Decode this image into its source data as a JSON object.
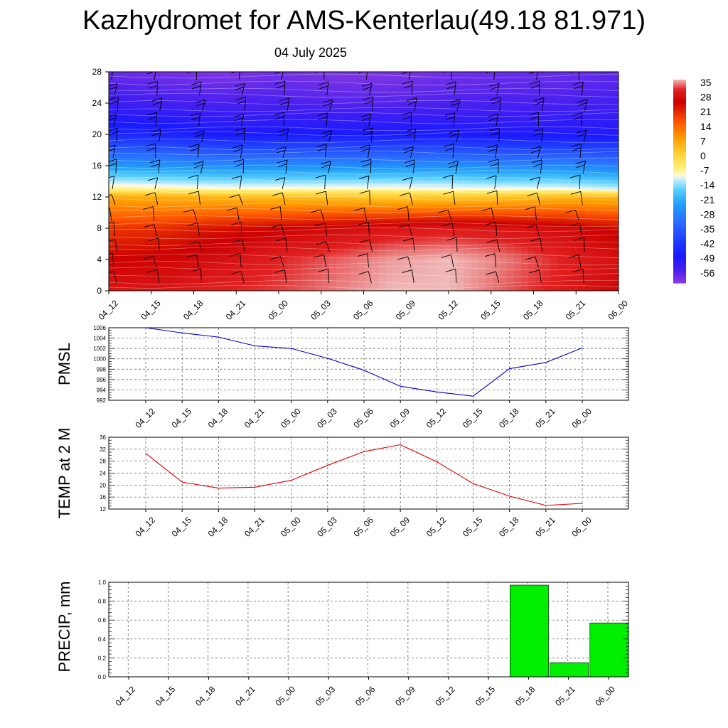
{
  "title": "Kazhydromet for AMS-Kenterlau(49.18 81.971)",
  "subtitle": "04 July 2025",
  "time_labels": [
    "04_12",
    "04_15",
    "04_18",
    "04_21",
    "05_00",
    "05_03",
    "05_06",
    "05_09",
    "05_12",
    "05_15",
    "05_18",
    "05_21",
    "06_00"
  ],
  "chart_data": [
    {
      "type": "heatmap",
      "title": "",
      "ylim": [
        0,
        28
      ],
      "y_ticks": [
        0,
        4,
        8,
        12,
        16,
        20,
        24,
        28
      ],
      "x_ticks": [
        "04_12",
        "04_15",
        "04_18",
        "04_21",
        "05_00",
        "05_03",
        "05_06",
        "05_09",
        "05_12",
        "05_15",
        "05_18",
        "05_21",
        "06_00"
      ],
      "colorbar_range": [
        -63,
        35
      ],
      "colorbar_labels": [
        "35",
        "28",
        "21",
        "14",
        "7",
        "0",
        "-7",
        "-14",
        "-21",
        "-28",
        "-35",
        "-42",
        "-49",
        "-56"
      ],
      "colors": {
        "hot": "#d01010",
        "warm": "#ff8a00",
        "yellow": "#ffe24a",
        "cyan": "#3ec8ff",
        "blue": "#1e50ff",
        "violet": "#7a2ad8"
      },
      "levels": [
        0,
        4,
        8,
        12,
        13,
        14,
        16,
        20,
        24,
        28
      ],
      "temperature": [
        [
          28,
          28,
          30,
          31,
          33,
          35,
          35,
          32,
          29,
          25
        ],
        [
          24,
          25,
          27,
          30,
          32,
          34,
          35,
          33,
          30,
          27
        ],
        [
          18,
          19,
          22,
          24,
          26,
          28,
          29,
          28,
          26,
          23
        ],
        [
          5,
          4,
          3,
          2,
          1,
          0,
          0,
          1,
          3,
          3
        ],
        [
          -8,
          -9,
          -10,
          -10,
          -10,
          -10,
          -11,
          -11,
          -11,
          -13
        ],
        [
          -14,
          -15,
          -16,
          -16,
          -16,
          -16,
          -16,
          -17,
          -17,
          -19
        ],
        [
          -26,
          -27,
          -28,
          -28,
          -28,
          -28,
          -28,
          -29,
          -29,
          -31
        ],
        [
          -47,
          -48,
          -50,
          -50,
          -50,
          -50,
          -50,
          -51,
          -51,
          -51
        ],
        [
          -55,
          -56,
          -57,
          -57,
          -58,
          -58,
          -57,
          -57,
          -57,
          -56
        ],
        [
          -60,
          -61,
          -62,
          -61,
          -62,
          -62,
          -61,
          -60,
          -60,
          -59
        ]
      ]
    },
    {
      "type": "line",
      "ylabel": "PMSL",
      "ylim": [
        992,
        1006
      ],
      "y_ticks": [
        992,
        994,
        996,
        998,
        1000,
        1002,
        1004,
        1006
      ],
      "x": [
        "04_12",
        "04_15",
        "04_18",
        "04_21",
        "05_00",
        "05_03",
        "05_06",
        "05_09",
        "05_12",
        "05_15",
        "05_18",
        "05_21",
        "06_00"
      ],
      "values": [
        1006,
        1005,
        1004.2,
        1002.5,
        1002,
        1000.1,
        997.8,
        994.7,
        993.6,
        992.8,
        998.1,
        999.3,
        1002.1
      ],
      "color": "#0000cc"
    },
    {
      "type": "line",
      "ylabel": "TEMP at 2 M",
      "ylim": [
        12,
        36
      ],
      "y_ticks": [
        12,
        16,
        20,
        24,
        28,
        32,
        36
      ],
      "x": [
        "04_12",
        "04_15",
        "04_18",
        "04_21",
        "05_00",
        "05_03",
        "05_06",
        "05_09",
        "05_12",
        "05_15",
        "05_18",
        "05_21",
        "06_00"
      ],
      "values": [
        30.6,
        21.0,
        19.0,
        19.3,
        21.6,
        26.6,
        31.2,
        33.5,
        27.8,
        20.5,
        16.3,
        13.2,
        13.9
      ],
      "color": "#dd0000"
    },
    {
      "type": "bar",
      "ylabel": "PRECIP, mm",
      "ylim": [
        0,
        1.0
      ],
      "y_ticks": [
        "0.0",
        "0.2",
        "0.4",
        "0.6",
        "0.8",
        "1.0"
      ],
      "categories": [
        "04_12",
        "04_15",
        "04_18",
        "04_21",
        "05_00",
        "05_03",
        "05_06",
        "05_09",
        "05_12",
        "05_15",
        "05_18",
        "05_21",
        "06_00"
      ],
      "values": [
        0,
        0,
        0,
        0,
        0,
        0,
        0,
        0,
        0,
        0,
        0.97,
        0.15,
        0.57
      ],
      "color": "#00ee00"
    }
  ]
}
